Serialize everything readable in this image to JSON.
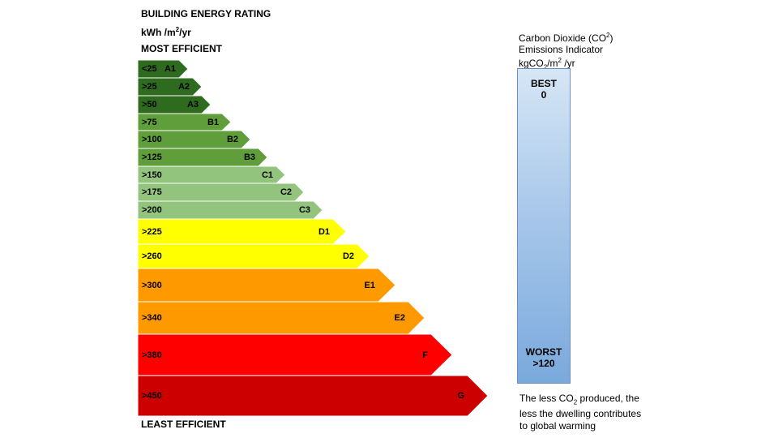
{
  "header": {
    "title": "BUILDING ENERGY RATING",
    "unit_prefix": "kWh /m",
    "unit_exp": "2",
    "unit_suffix": "/yr",
    "most": "MOST EFFICIENT",
    "least": "LEAST EFFICIENT"
  },
  "ratings": [
    {
      "range": "<25",
      "grade": "A1",
      "color": "#2e6b1f"
    },
    {
      "range": ">25",
      "grade": "A2",
      "color": "#2e6b1f"
    },
    {
      "range": ">50",
      "grade": "A3",
      "color": "#2e6b1f"
    },
    {
      "range": ">75",
      "grade": "B1",
      "color": "#5f9e3a"
    },
    {
      "range": ">100",
      "grade": "B2",
      "color": "#5f9e3a"
    },
    {
      "range": ">125",
      "grade": "B3",
      "color": "#5f9e3a"
    },
    {
      "range": ">150",
      "grade": "C1",
      "color": "#93c47d"
    },
    {
      "range": ">175",
      "grade": "C2",
      "color": "#93c47d"
    },
    {
      "range": ">200",
      "grade": "C3",
      "color": "#93c47d"
    },
    {
      "range": ">225",
      "grade": "D1",
      "color": "#ffff00"
    },
    {
      "range": ">260",
      "grade": "D2",
      "color": "#ffff00"
    },
    {
      "range": ">300",
      "grade": "E1",
      "color": "#ff9900"
    },
    {
      "range": ">340",
      "grade": "E2",
      "color": "#ff9900"
    },
    {
      "range": ">380",
      "grade": "F",
      "color": "#ff0000"
    },
    {
      "range": ">450",
      "grade": "G",
      "color": "#cc0000"
    }
  ],
  "co2": {
    "title_line1": "Carbon Dioxide (CO",
    "title_line1_sub": "2",
    "title_line1_end": ")",
    "title_line2": "Emissions Indicator",
    "title_line3": "kgCO",
    "title_line3_sub": "2",
    "title_line3_mid": "/m",
    "title_line3_sup": "2",
    "title_line3_end": " /yr",
    "best_label": "BEST",
    "best_value": "0",
    "worst_label": "WORST",
    "worst_value": ">120",
    "note_part1": "The less CO",
    "note_sub": "2",
    "note_part2": " produced, the less the dwelling contributes to global warming",
    "gradient_top": "#d6e6f5",
    "gradient_bottom": "#7aa9dc"
  }
}
